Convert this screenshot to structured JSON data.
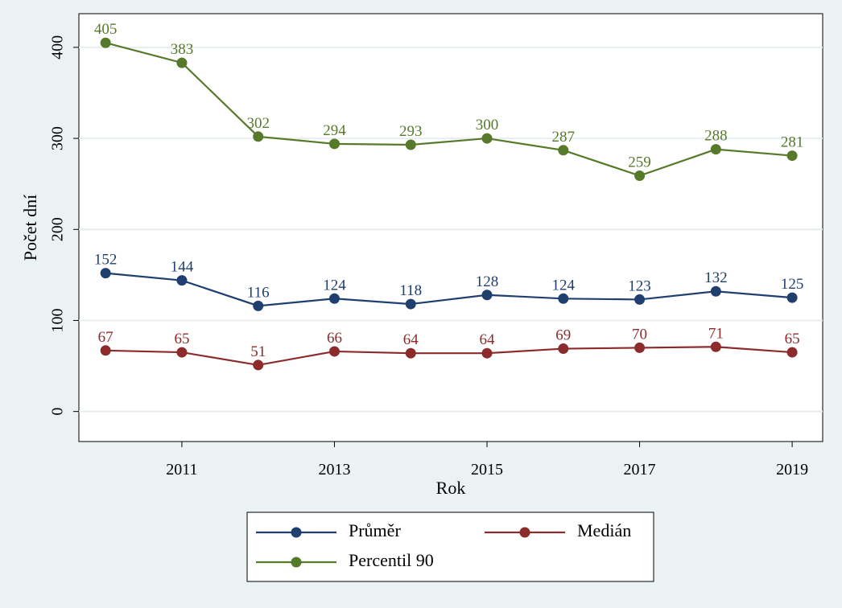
{
  "chart_data": {
    "type": "line",
    "title": "",
    "xlabel": "Rok",
    "ylabel": "Počet dní",
    "x": [
      2010,
      2011,
      2012,
      2013,
      2014,
      2015,
      2016,
      2017,
      2018,
      2019
    ],
    "x_ticks": [
      2011,
      2013,
      2015,
      2017,
      2019
    ],
    "y_ticks": [
      0,
      100,
      200,
      300,
      400
    ],
    "ylim": [
      -33,
      437
    ],
    "xlim": [
      2009.65,
      2019.4
    ],
    "grid": true,
    "legend_position": "bottom",
    "series": [
      {
        "name": "Průměr",
        "color": "#1f3f6e",
        "values": [
          152,
          144,
          116,
          124,
          118,
          128,
          124,
          123,
          132,
          125
        ]
      },
      {
        "name": "Medián",
        "color": "#8c2b2b",
        "values": [
          67,
          65,
          51,
          66,
          64,
          64,
          69,
          70,
          71,
          65
        ]
      },
      {
        "name": "Percentil 90",
        "color": "#56792a",
        "values": [
          405,
          383,
          302,
          294,
          293,
          300,
          287,
          259,
          288,
          281
        ]
      }
    ]
  },
  "colors": {
    "background": "#eaf2f3",
    "plot_background": "#ffffff",
    "grid": "#e8eef0"
  }
}
